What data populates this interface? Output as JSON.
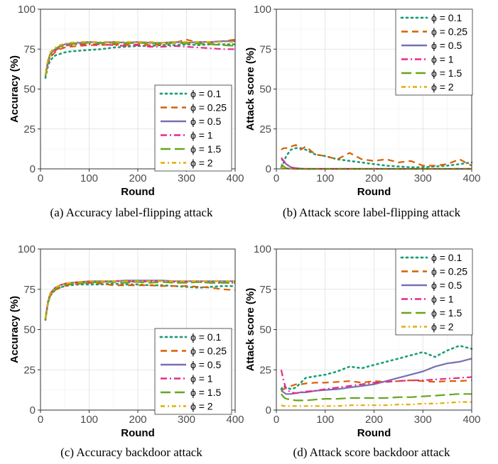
{
  "series_styles": [
    {
      "name": "ϕ = 0.1",
      "color": "#1b9e77",
      "dash": "dot"
    },
    {
      "name": "ϕ = 0.25",
      "color": "#d95f02",
      "dash": "dash"
    },
    {
      "name": "ϕ = 0.5",
      "color": "#7570b3",
      "dash": "solid"
    },
    {
      "name": "ϕ = 1",
      "color": "#e7298a",
      "dash": "dashdot"
    },
    {
      "name": "ϕ = 1.5",
      "color": "#66a61e",
      "dash": "longdash"
    },
    {
      "name": "ϕ = 2",
      "color": "#e6ab02",
      "dash": "dashdot2"
    }
  ],
  "chart_data": [
    {
      "type": "line",
      "caption": "(a) Accuracy label-flipping attack",
      "xlabel": "Round",
      "ylabel": "Accuracy (%)",
      "xlim": [
        0,
        400
      ],
      "ylim": [
        0,
        100
      ],
      "xticks": [
        0,
        100,
        200,
        300,
        400
      ],
      "yticks": [
        0,
        25,
        50,
        75,
        100
      ],
      "grid": true,
      "legend_position": "bottom-right",
      "x": [
        10,
        15,
        20,
        30,
        40,
        50,
        60,
        80,
        100,
        125,
        150,
        175,
        200,
        225,
        250,
        275,
        300,
        325,
        350,
        375,
        400
      ],
      "series": [
        {
          "name": "ϕ = 0.1",
          "values": [
            57,
            64,
            68,
            71,
            72,
            73,
            73.5,
            74,
            74.5,
            75,
            76,
            76.5,
            77,
            77,
            77.5,
            77.5,
            78,
            77.5,
            78,
            78,
            78
          ]
        },
        {
          "name": "ϕ = 0.25",
          "values": [
            58,
            66,
            70,
            73,
            75,
            76,
            76.5,
            77,
            77.5,
            77.5,
            78,
            77.5,
            78,
            77.5,
            78,
            79,
            81,
            79,
            79,
            80,
            81
          ]
        },
        {
          "name": "ϕ = 0.5",
          "values": [
            59,
            67,
            72,
            75,
            77,
            78,
            78.5,
            79,
            79.5,
            79,
            79.5,
            79,
            79.5,
            79,
            79,
            79.5,
            79,
            79.5,
            79.5,
            80,
            80
          ]
        },
        {
          "name": "ϕ = 1",
          "values": [
            58,
            66,
            71,
            74,
            76,
            77,
            77.5,
            78,
            78,
            78,
            77.5,
            77,
            77.5,
            76.5,
            76.5,
            77,
            76.5,
            76,
            75.5,
            75,
            75
          ]
        },
        {
          "name": "ϕ = 1.5",
          "values": [
            58,
            67,
            72,
            75,
            76.5,
            77.5,
            78,
            78.5,
            79,
            78.5,
            79,
            78.5,
            79,
            78.5,
            78.5,
            79,
            78.5,
            78.5,
            78,
            77.5,
            77
          ]
        },
        {
          "name": "ϕ = 2",
          "values": [
            59,
            68,
            73,
            76,
            77.5,
            78.5,
            79,
            79.5,
            79.5,
            79.5,
            79.5,
            79.5,
            79.5,
            79.5,
            79,
            79.5,
            79.5,
            79.5,
            79.5,
            79.5,
            79.5
          ]
        }
      ]
    },
    {
      "type": "line",
      "caption": "(b) Attack score label-flipping attack",
      "xlabel": "Round",
      "ylabel": "Attack score (%)",
      "xlim": [
        0,
        400
      ],
      "ylim": [
        0,
        100
      ],
      "xticks": [
        0,
        100,
        200,
        300,
        400
      ],
      "yticks": [
        0,
        25,
        50,
        75,
        100
      ],
      "grid": true,
      "legend_position": "top-right",
      "x": [
        10,
        15,
        20,
        30,
        40,
        50,
        60,
        80,
        100,
        125,
        150,
        175,
        200,
        225,
        250,
        275,
        300,
        325,
        350,
        375,
        400
      ],
      "series": [
        {
          "name": "ϕ = 0.1",
          "values": [
            1,
            4,
            8,
            12,
            13,
            13,
            12,
            9,
            8,
            6,
            5,
            4,
            3,
            2,
            1.5,
            1,
            1,
            1.5,
            2,
            3,
            4
          ]
        },
        {
          "name": "ϕ = 0.25",
          "values": [
            12,
            13,
            13,
            14,
            15,
            12,
            14,
            9,
            8,
            6,
            10,
            6,
            5,
            6,
            4,
            5,
            2,
            2,
            3,
            6,
            2
          ]
        },
        {
          "name": "ϕ = 0.5",
          "values": [
            6,
            5,
            3,
            1,
            0.5,
            0.2,
            0,
            0,
            0,
            0,
            0,
            0,
            0,
            0,
            0,
            0,
            0,
            0,
            0,
            0,
            0
          ]
        },
        {
          "name": "ϕ = 1",
          "values": [
            7,
            5,
            3,
            1,
            0.4,
            0.1,
            0,
            0,
            0,
            0,
            0,
            0,
            0,
            0,
            0,
            0,
            0,
            0,
            0,
            0,
            0
          ]
        },
        {
          "name": "ϕ = 1.5",
          "values": [
            3,
            1.5,
            0.5,
            0,
            0,
            0,
            0,
            0,
            0,
            0,
            0,
            0,
            0,
            0,
            0,
            0,
            0,
            0,
            0,
            0,
            0
          ]
        },
        {
          "name": "ϕ = 2",
          "values": [
            1,
            0.5,
            0,
            0,
            0,
            0,
            0,
            0,
            0,
            0,
            0,
            0,
            0,
            0,
            0,
            0,
            0,
            0,
            0,
            0,
            0
          ]
        }
      ]
    },
    {
      "type": "line",
      "caption": "(c) Accuracy backdoor attack",
      "xlabel": "Round",
      "ylabel": "Accuracy (%)",
      "xlim": [
        0,
        400
      ],
      "ylim": [
        0,
        100
      ],
      "xticks": [
        0,
        100,
        200,
        300,
        400
      ],
      "yticks": [
        0,
        25,
        50,
        75,
        100
      ],
      "grid": true,
      "legend_position": "bottom-right",
      "x": [
        10,
        15,
        20,
        30,
        40,
        50,
        60,
        80,
        100,
        125,
        150,
        175,
        200,
        225,
        250,
        275,
        300,
        325,
        350,
        375,
        400
      ],
      "series": [
        {
          "name": "ϕ = 0.1",
          "values": [
            56,
            66,
            71,
            74.5,
            76,
            77,
            77.5,
            78,
            78,
            78,
            78.5,
            78,
            78,
            77.5,
            77.5,
            77,
            76.5,
            76,
            76.5,
            77,
            77
          ]
        },
        {
          "name": "ϕ = 0.25",
          "values": [
            56,
            66,
            71,
            74.5,
            76,
            77,
            78,
            78.5,
            79,
            78.5,
            77.5,
            77.5,
            77.5,
            77.5,
            77,
            77,
            77,
            76.5,
            76,
            75,
            74.5
          ]
        },
        {
          "name": "ϕ = 0.5",
          "values": [
            57,
            67,
            72.5,
            76,
            77.5,
            78.5,
            79,
            79.5,
            80,
            80,
            80,
            80.5,
            80.5,
            80.5,
            80.5,
            80,
            80,
            80,
            80,
            80,
            80
          ]
        },
        {
          "name": "ϕ = 1",
          "values": [
            56,
            66.5,
            72,
            75.5,
            77.5,
            78.5,
            79,
            79.5,
            79.5,
            79.5,
            80,
            80,
            79.5,
            80,
            80,
            79.5,
            79.5,
            79.5,
            79,
            79,
            79
          ]
        },
        {
          "name": "ϕ = 1.5",
          "values": [
            56,
            66,
            71.5,
            75,
            77,
            78,
            78.5,
            79,
            79,
            79.5,
            79.5,
            79,
            79.5,
            79,
            79.5,
            79,
            79,
            79.5,
            79,
            79,
            79
          ]
        },
        {
          "name": "ϕ = 2",
          "values": [
            57,
            67,
            72.5,
            76,
            77.5,
            78.5,
            79,
            79.5,
            80,
            80,
            80,
            80,
            80,
            80,
            80,
            80,
            80,
            80,
            80,
            80,
            80
          ]
        }
      ]
    },
    {
      "type": "line",
      "caption": "(d) Attack score backdoor attack",
      "xlabel": "Round",
      "ylabel": "Attack score (%)",
      "xlim": [
        0,
        400
      ],
      "ylim": [
        0,
        100
      ],
      "xticks": [
        0,
        100,
        200,
        300,
        400
      ],
      "yticks": [
        0,
        25,
        50,
        75,
        100
      ],
      "grid": true,
      "legend_position": "top-right",
      "x": [
        10,
        15,
        20,
        30,
        40,
        50,
        60,
        80,
        100,
        125,
        150,
        175,
        200,
        225,
        250,
        275,
        300,
        325,
        350,
        375,
        400
      ],
      "series": [
        {
          "name": "ϕ = 0.1",
          "values": [
            13,
            15,
            14,
            13,
            14,
            17,
            20,
            21,
            22,
            24,
            27,
            26,
            28,
            30,
            32,
            34,
            36,
            33,
            37,
            40,
            38
          ]
        },
        {
          "name": "ϕ = 0.25",
          "values": [
            12,
            13,
            14,
            15,
            16,
            16,
            16.5,
            17,
            17,
            17.5,
            18,
            17,
            18,
            17.5,
            18,
            18.5,
            18,
            17.5,
            18,
            18,
            18.5
          ]
        },
        {
          "name": "ϕ = 0.5",
          "values": [
            12,
            11,
            10,
            10,
            10.5,
            11,
            11,
            12,
            12.5,
            13,
            14,
            15,
            16,
            18,
            20,
            22,
            24,
            27,
            29,
            30,
            32
          ]
        },
        {
          "name": "ϕ = 1",
          "values": [
            25,
            18,
            13,
            11,
            10.5,
            11,
            11.5,
            12,
            13,
            14,
            15,
            16,
            17,
            17.5,
            18,
            18.5,
            18.5,
            19,
            19.5,
            20,
            20.5
          ]
        },
        {
          "name": "ϕ = 1.5",
          "values": [
            10,
            8,
            7,
            6.5,
            6,
            6,
            6,
            6.5,
            7,
            7,
            7.5,
            7.5,
            7.5,
            7.5,
            8,
            8,
            8.5,
            9,
            9.5,
            10,
            10
          ]
        },
        {
          "name": "ϕ = 2",
          "values": [
            3,
            2.5,
            2.5,
            2.5,
            2.5,
            2.5,
            2.5,
            2.5,
            2.5,
            2.5,
            3,
            3,
            3,
            3,
            3.5,
            3.5,
            4,
            4,
            4.5,
            5,
            5
          ]
        }
      ]
    }
  ]
}
